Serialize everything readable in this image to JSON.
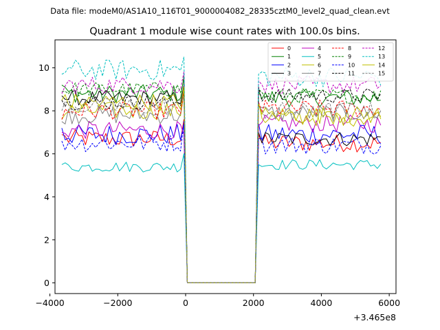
{
  "chart_data": {
    "type": "line",
    "suptitle": "Data file: modeM0/AS1A10_116T01_9000004082_28335cztM0_level2_quad_clean.evt",
    "title": "Quadrant 1 module wise count rates with 100.0s bins.",
    "xlabel": "",
    "ylabel": "",
    "x_offset_label": "+3.465e8",
    "xlim": [
      -3850,
      6200
    ],
    "ylim": [
      -0.5,
      11.3
    ],
    "x_ticks": [
      -4000,
      -2000,
      0,
      2000,
      4000,
      6000
    ],
    "x_tick_labels": [
      "−4000",
      "−2000",
      "0",
      "2000",
      "4000",
      "6000"
    ],
    "y_ticks": [
      0,
      2,
      4,
      6,
      8,
      10
    ],
    "y_tick_labels": [
      "0",
      "2",
      "4",
      "6",
      "8",
      "10"
    ],
    "segments": [
      {
        "start": -3650,
        "end": -50
      },
      {
        "start": 2150,
        "end": 5800
      }
    ],
    "gap": [
      50,
      2050
    ],
    "bin_seconds": 100,
    "series": [
      {
        "name": "0",
        "color": "#ff0000",
        "dash": false,
        "mean1": 6.7,
        "mean2": 6.5,
        "noise": 0.3,
        "start1": 6.9,
        "end1": 7.6,
        "start2": 6.9,
        "end2": 6.2
      },
      {
        "name": "1",
        "color": "#008000",
        "dash": false,
        "mean1": 8.8,
        "mean2": 8.6,
        "noise": 0.3,
        "start1": 9.2,
        "end1": 9.6,
        "start2": 8.9,
        "end2": 7.6
      },
      {
        "name": "2",
        "color": "#0000ff",
        "dash": false,
        "mean1": 6.9,
        "mean2": 6.9,
        "noise": 0.35,
        "start1": 7.2,
        "end1": 7.4,
        "start2": 7.4,
        "end2": 6.6
      },
      {
        "name": "3",
        "color": "#000000",
        "dash": false,
        "mean1": 8.6,
        "mean2": 6.7,
        "noise": 0.25,
        "start1": 8.7,
        "end1": 9.2,
        "start2": 7.0,
        "end2": 6.1
      },
      {
        "name": "4",
        "color": "#bf00bf",
        "dash": false,
        "mean1": 7.1,
        "mean2": 7.4,
        "noise": 0.3,
        "start1": 7.0,
        "end1": 6.9,
        "start2": 7.3,
        "end2": 7.0
      },
      {
        "name": "5",
        "color": "#00bfbf",
        "dash": false,
        "mean1": 5.4,
        "mean2": 5.5,
        "noise": 0.18,
        "start1": 5.5,
        "end1": 6.0,
        "start2": 5.5,
        "end2": 5.1
      },
      {
        "name": "6",
        "color": "#bfbf00",
        "dash": false,
        "mean1": 8.0,
        "mean2": 7.7,
        "noise": 0.3,
        "start1": 7.6,
        "end1": 8.8,
        "start2": 8.4,
        "end2": 7.4
      },
      {
        "name": "7",
        "color": "#808080",
        "dash": false,
        "mean1": 7.8,
        "mean2": 7.9,
        "noise": 0.3,
        "start1": 7.5,
        "end1": 8.9,
        "start2": 8.2,
        "end2": 7.7
      },
      {
        "name": "8",
        "color": "#ff0000",
        "dash": true,
        "mean1": 8.0,
        "mean2": 8.1,
        "noise": 0.3,
        "start1": 7.6,
        "end1": 8.9,
        "start2": 8.4,
        "end2": 7.9
      },
      {
        "name": "9",
        "color": "#008000",
        "dash": true,
        "mean1": 9.0,
        "mean2": 8.7,
        "noise": 0.25,
        "start1": 8.9,
        "end1": 9.4,
        "start2": 9.0,
        "end2": 8.6
      },
      {
        "name": "10",
        "color": "#0000ff",
        "dash": true,
        "mean1": 6.5,
        "mean2": 6.4,
        "noise": 0.3,
        "start1": 6.6,
        "end1": 7.5,
        "start2": 6.7,
        "end2": 5.8
      },
      {
        "name": "11",
        "color": "#000000",
        "dash": true,
        "mean1": 8.4,
        "mean2": 8.7,
        "noise": 0.25,
        "start1": 8.5,
        "end1": 9.0,
        "start2": 9.1,
        "end2": 8.1
      },
      {
        "name": "12",
        "color": "#bf00bf",
        "dash": true,
        "mean1": 9.2,
        "mean2": 9.2,
        "noise": 0.3,
        "start1": 8.8,
        "end1": 9.8,
        "start2": 9.4,
        "end2": 9.0
      },
      {
        "name": "13",
        "color": "#00bfbf",
        "dash": true,
        "mean1": 9.9,
        "mean2": 9.6,
        "noise": 0.35,
        "start1": 9.7,
        "end1": 10.5,
        "start2": 9.7,
        "end2": 9.5
      },
      {
        "name": "14",
        "color": "#bfbf00",
        "dash": false,
        "mean1": 8.4,
        "mean2": 7.8,
        "noise": 0.3,
        "start1": 8.5,
        "end1": 9.1,
        "start2": 8.3,
        "end2": 7.5
      },
      {
        "name": "15",
        "color": "#808080",
        "dash": true,
        "mean1": 8.2,
        "mean2": 8.0,
        "noise": 0.3,
        "start1": 8.0,
        "end1": 8.6,
        "start2": 8.2,
        "end2": 7.8
      }
    ],
    "legend_position": "top-right",
    "legend_columns": 4
  }
}
